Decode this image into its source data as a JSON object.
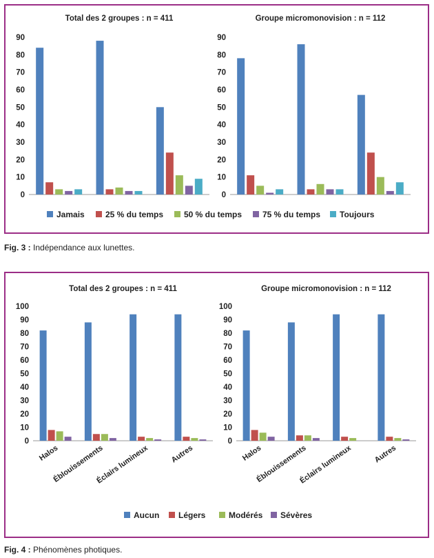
{
  "figure3": {
    "caption_label": "Fig. 3 :",
    "caption_text": " Indépendance aux lunettes.",
    "legend": [
      {
        "name": "Jamais",
        "color": "#4f81bd"
      },
      {
        "name": "25 % du temps",
        "color": "#c0504d"
      },
      {
        "name": "50 % du temps",
        "color": "#9bbb59"
      },
      {
        "name": "75 % du temps",
        "color": "#8064a2"
      },
      {
        "name": "Toujours",
        "color": "#4bacc6"
      }
    ]
  },
  "figure4": {
    "caption_label": "Fig. 4 :",
    "caption_text": " Phénomènes photiques.",
    "legend": [
      {
        "name": "Aucun",
        "color": "#4f81bd"
      },
      {
        "name": "Légers",
        "color": "#c0504d"
      },
      {
        "name": "Modérés",
        "color": "#9bbb59"
      },
      {
        "name": "Sévères",
        "color": "#8064a2"
      }
    ]
  },
  "chart_data": [
    {
      "type": "bar",
      "title": "Total des 2 groupes : n = 411",
      "ylim": [
        0,
        90
      ],
      "yticks": [
        0,
        10,
        20,
        30,
        40,
        50,
        60,
        70,
        80,
        90
      ],
      "categories": [
        "",
        "",
        ""
      ],
      "series": [
        {
          "name": "Jamais",
          "color": "#4f81bd",
          "values": [
            84,
            88,
            50
          ]
        },
        {
          "name": "25 % du temps",
          "color": "#c0504d",
          "values": [
            7,
            3,
            24
          ]
        },
        {
          "name": "50 % du temps",
          "color": "#9bbb59",
          "values": [
            3,
            4,
            11
          ]
        },
        {
          "name": "75 % du temps",
          "color": "#8064a2",
          "values": [
            2,
            2,
            5
          ]
        },
        {
          "name": "Toujours",
          "color": "#4bacc6",
          "values": [
            3,
            2,
            9
          ]
        }
      ]
    },
    {
      "type": "bar",
      "title": "Groupe micromonovision : n = 112",
      "ylim": [
        0,
        90
      ],
      "yticks": [
        0,
        10,
        20,
        30,
        40,
        50,
        60,
        70,
        80,
        90
      ],
      "categories": [
        "",
        "",
        ""
      ],
      "series": [
        {
          "name": "Jamais",
          "color": "#4f81bd",
          "values": [
            78,
            86,
            57
          ]
        },
        {
          "name": "25 % du temps",
          "color": "#c0504d",
          "values": [
            11,
            3,
            24
          ]
        },
        {
          "name": "50 % du temps",
          "color": "#9bbb59",
          "values": [
            5,
            6,
            10
          ]
        },
        {
          "name": "75 % du temps",
          "color": "#8064a2",
          "values": [
            1,
            3,
            2
          ]
        },
        {
          "name": "Toujours",
          "color": "#4bacc6",
          "values": [
            3,
            3,
            7
          ]
        }
      ]
    },
    {
      "type": "bar",
      "title": "Total des 2 groupes : n = 411",
      "ylim": [
        0,
        100
      ],
      "yticks": [
        0,
        10,
        20,
        30,
        40,
        50,
        60,
        70,
        80,
        90,
        100
      ],
      "categories": [
        "Halos",
        "Éblouissements",
        "Éclairs lumineux",
        "Autres"
      ],
      "series": [
        {
          "name": "Aucun",
          "color": "#4f81bd",
          "values": [
            82,
            88,
            94,
            94
          ]
        },
        {
          "name": "Légers",
          "color": "#c0504d",
          "values": [
            8,
            5,
            3,
            3
          ]
        },
        {
          "name": "Modérés",
          "color": "#9bbb59",
          "values": [
            7,
            5,
            2,
            2
          ]
        },
        {
          "name": "Sévères",
          "color": "#8064a2",
          "values": [
            3,
            2,
            1,
            1
          ]
        }
      ]
    },
    {
      "type": "bar",
      "title": "Groupe micromonovision : n = 112",
      "ylim": [
        0,
        100
      ],
      "yticks": [
        0,
        10,
        20,
        30,
        40,
        50,
        60,
        70,
        80,
        90,
        100
      ],
      "categories": [
        "Halos",
        "Éblouissements",
        "Éclairs lumineux",
        "Autres"
      ],
      "series": [
        {
          "name": "Aucun",
          "color": "#4f81bd",
          "values": [
            82,
            88,
            94,
            94
          ]
        },
        {
          "name": "Légers",
          "color": "#c0504d",
          "values": [
            8,
            4,
            3,
            3
          ]
        },
        {
          "name": "Modérés",
          "color": "#9bbb59",
          "values": [
            6,
            4,
            2,
            2
          ]
        },
        {
          "name": "Sévères",
          "color": "#8064a2",
          "values": [
            3,
            2,
            0,
            1
          ]
        }
      ]
    }
  ]
}
